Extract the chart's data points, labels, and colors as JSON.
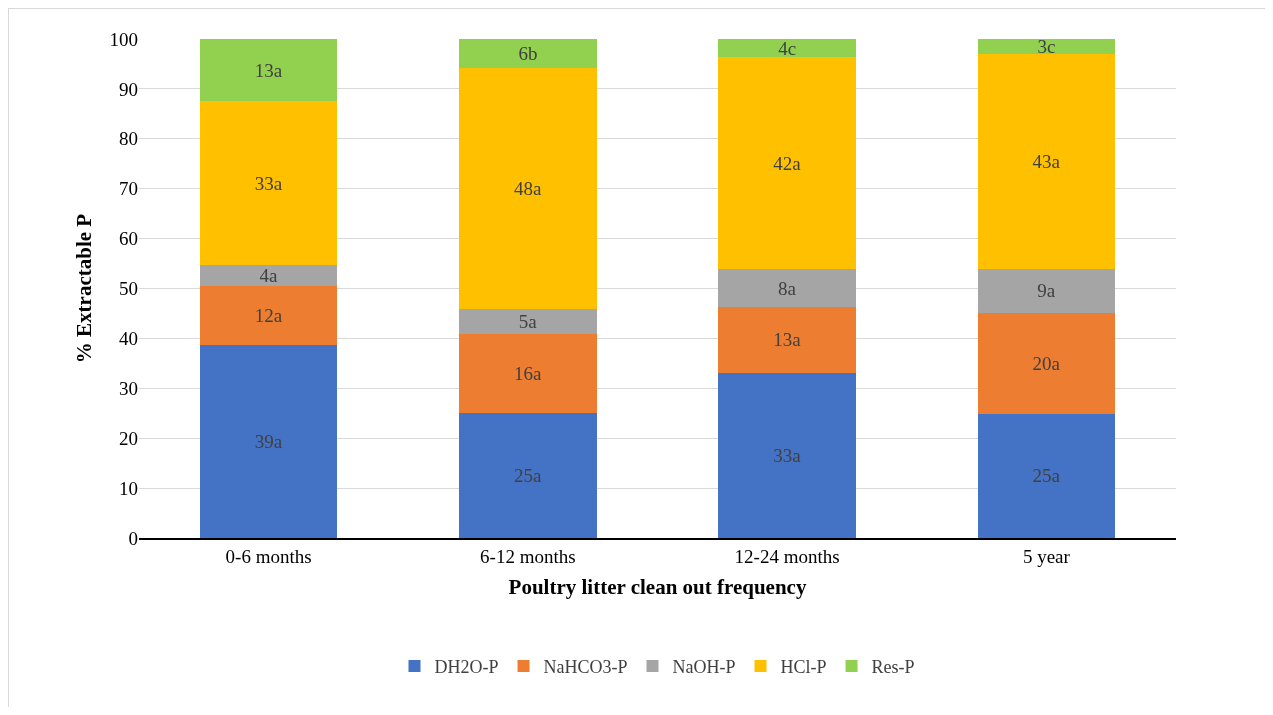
{
  "chart_data": {
    "type": "bar",
    "stacked": true,
    "xlabel": "Poultry litter clean out frequency",
    "ylabel": "% Extractable P",
    "categories": [
      "0-6 months",
      "6-12 months",
      "12-24 months",
      "5 year"
    ],
    "ylim": [
      0,
      100
    ],
    "yticks": [
      0,
      10,
      20,
      30,
      40,
      50,
      60,
      70,
      80,
      90,
      100
    ],
    "grid": "y",
    "legend": "bottom",
    "series": [
      {
        "name": "DH2O-P",
        "color": "#4472c4",
        "values": [
          38.6,
          25.1,
          33.1,
          24.9
        ],
        "value_labels": [
          "39a",
          "25a",
          "33a",
          "25a"
        ]
      },
      {
        "name": "NaHCO3-P",
        "color": "#ed7d31",
        "values": [
          12.0,
          15.7,
          13.2,
          20.2
        ],
        "value_labels": [
          "12a",
          "16a",
          "13a",
          "20a"
        ]
      },
      {
        "name": "NaOH-P",
        "color": "#a5a5a5",
        "values": [
          4.1,
          5.1,
          7.6,
          8.8
        ],
        "value_labels": [
          "4a",
          "5a",
          "8a",
          "9a"
        ]
      },
      {
        "name": "HCl-P",
        "color": "#ffc000",
        "values": [
          32.8,
          48.2,
          42.4,
          43.0
        ],
        "value_labels": [
          "33a",
          "48a",
          "42a",
          "43a"
        ]
      },
      {
        "name": "Res-P",
        "color": "#92d050",
        "values": [
          12.5,
          5.9,
          3.7,
          3.1
        ],
        "value_labels": [
          "13a",
          "6b",
          "4c",
          "3c"
        ]
      }
    ]
  }
}
